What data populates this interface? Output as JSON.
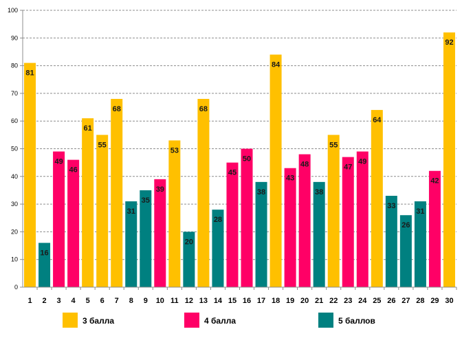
{
  "chart_data": {
    "type": "bar",
    "title": "",
    "xlabel": "",
    "ylabel": "",
    "ylim": [
      0,
      100
    ],
    "yticks": [
      0,
      10,
      20,
      30,
      40,
      50,
      60,
      70,
      80,
      90,
      100
    ],
    "grid": true,
    "categories": [
      "1",
      "2",
      "3",
      "4",
      "5",
      "6",
      "7",
      "8",
      "9",
      "10",
      "11",
      "12",
      "13",
      "14",
      "15",
      "16",
      "17",
      "18",
      "19",
      "20",
      "21",
      "22",
      "23",
      "24",
      "25",
      "26",
      "27",
      "28",
      "29",
      "30"
    ],
    "values": [
      81,
      16,
      49,
      46,
      61,
      55,
      68,
      31,
      35,
      39,
      53,
      20,
      68,
      28,
      45,
      50,
      38,
      84,
      43,
      48,
      38,
      55,
      47,
      49,
      64,
      33,
      26,
      31,
      42,
      92
    ],
    "groups": [
      0,
      2,
      1,
      1,
      0,
      0,
      0,
      2,
      2,
      1,
      0,
      2,
      0,
      2,
      1,
      1,
      2,
      0,
      1,
      1,
      2,
      0,
      1,
      1,
      0,
      2,
      2,
      2,
      1,
      0
    ],
    "legend": [
      {
        "name": "3 балла",
        "color": "#FFC000"
      },
      {
        "name": "4 балла",
        "color": "#FF0066"
      },
      {
        "name": "5 баллов",
        "color": "#008080"
      }
    ],
    "legend_position": "bottom"
  }
}
